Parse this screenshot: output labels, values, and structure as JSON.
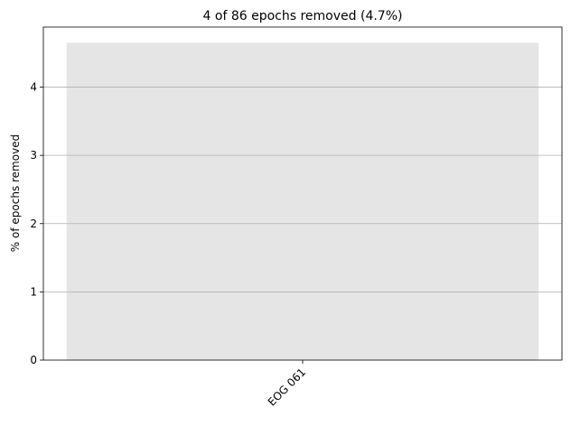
{
  "chart_data": {
    "type": "bar",
    "title": "4 of 86 epochs removed (4.7%)",
    "xlabel": "",
    "ylabel": "% of epochs removed",
    "categories": [
      "EOG 061"
    ],
    "values": [
      4.65
    ],
    "ylim": [
      0,
      4.88
    ],
    "yticks": [
      0,
      1,
      2,
      3,
      4
    ],
    "ytick_labels": [
      "0",
      "1",
      "2",
      "3",
      "4"
    ],
    "grid": "y",
    "legend": "none",
    "colors": {
      "bar": "#e5e5e5",
      "grid": "#b0b0b0",
      "axis": "#000000"
    }
  }
}
